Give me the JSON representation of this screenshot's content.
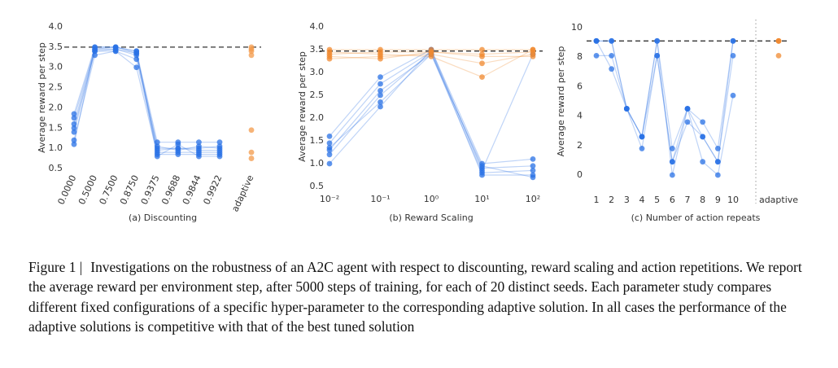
{
  "chart_data": [
    {
      "type": "line",
      "xlabel": "(a) Discounting",
      "ylabel": "Average reward per step",
      "categories": [
        "0.0000",
        "0.5000",
        "0.7500",
        "0.8750",
        "0.9375",
        "0.9688",
        "0.9844",
        "0.9922",
        "adaptive"
      ],
      "separate_last": true,
      "separator": false,
      "rotate_labels": true,
      "ylim": [
        0.5,
        4.0
      ],
      "yticks": [
        {
          "value": 0.5,
          "label": "0.5"
        },
        {
          "value": 1,
          "label": "1.0"
        },
        {
          "value": 1.5,
          "label": "1.5"
        },
        {
          "value": 2,
          "label": "2.0"
        },
        {
          "value": 2.5,
          "label": "2.5"
        },
        {
          "value": 3,
          "label": "3.0"
        },
        {
          "value": 3.5,
          "label": "3.5"
        },
        {
          "value": 4,
          "label": "4.0"
        }
      ],
      "reference_line": 3.5,
      "color": "#2a72e6",
      "adaptive_color": "#f39a4a",
      "series": [
        {
          "values": [
            1.85,
            3.5,
            3.5,
            3.4,
            1.15,
            1.15,
            1.15,
            1.15,
            3.5
          ]
        },
        {
          "values": [
            1.6,
            3.45,
            3.45,
            3.3,
            1.0,
            1.0,
            1.0,
            1.05,
            3.45
          ]
        },
        {
          "values": [
            1.4,
            3.4,
            3.4,
            3.2,
            0.9,
            0.9,
            0.9,
            0.9,
            3.4
          ]
        },
        {
          "values": [
            1.2,
            3.3,
            3.4,
            3.0,
            0.85,
            0.85,
            0.85,
            0.85,
            3.3
          ]
        },
        {
          "values": [
            1.1,
            3.5,
            3.5,
            3.35,
            1.05,
            0.95,
            1.05,
            1.0,
            1.45
          ]
        },
        {
          "values": [
            1.75,
            3.45,
            3.5,
            3.4,
            0.8,
            1.1,
            0.8,
            0.8,
            0.9
          ]
        },
        {
          "values": [
            1.5,
            3.4,
            3.45,
            3.35,
            0.95,
            1.0,
            0.95,
            0.95,
            0.75
          ]
        }
      ]
    },
    {
      "type": "line",
      "xlabel": "(b) Reward Scaling",
      "ylabel": "Average reward per step",
      "xscale": "log",
      "x": [
        0.01,
        0.1,
        1,
        10,
        100
      ],
      "xlim": [
        0.01,
        100
      ],
      "xticks": [
        {
          "value": 0.01,
          "label": "10⁻²"
        },
        {
          "value": 0.1,
          "label": "10⁻¹"
        },
        {
          "value": 1,
          "label": "10⁰"
        },
        {
          "value": 10,
          "label": "10¹"
        },
        {
          "value": 100,
          "label": "10²"
        }
      ],
      "ylim": [
        0.5,
        4.0
      ],
      "yticks": [
        {
          "value": 0.5,
          "label": "0.5"
        },
        {
          "value": 1,
          "label": "1.0"
        },
        {
          "value": 1.5,
          "label": "1.5"
        },
        {
          "value": 2,
          "label": "2.0"
        },
        {
          "value": 2.5,
          "label": "2.5"
        },
        {
          "value": 3,
          "label": "3.0"
        },
        {
          "value": 3.5,
          "label": "3.5"
        },
        {
          "value": 4,
          "label": "4.0"
        }
      ],
      "reference_line": 3.47,
      "series": [
        {
          "color": "#2a72e6",
          "values": [
            1.6,
            2.9,
            3.5,
            1.0,
            1.1
          ]
        },
        {
          "color": "#2a72e6",
          "values": [
            1.45,
            2.75,
            3.45,
            0.9,
            0.95
          ]
        },
        {
          "color": "#2a72e6",
          "values": [
            1.3,
            2.6,
            3.4,
            0.8,
            0.85
          ]
        },
        {
          "color": "#2a72e6",
          "values": [
            1.2,
            2.5,
            3.45,
            0.75,
            0.75
          ]
        },
        {
          "color": "#2a72e6",
          "values": [
            1.0,
            2.25,
            3.5,
            0.85,
            3.4
          ]
        },
        {
          "color": "#2a72e6",
          "values": [
            1.35,
            2.35,
            3.4,
            0.95,
            0.7
          ]
        },
        {
          "color": "#f08a30",
          "values": [
            3.5,
            3.5,
            3.5,
            3.5,
            3.5
          ]
        },
        {
          "color": "#f08a30",
          "values": [
            3.4,
            3.45,
            3.45,
            3.4,
            3.45
          ]
        },
        {
          "color": "#f08a30",
          "values": [
            3.3,
            3.35,
            3.4,
            3.2,
            3.4
          ]
        },
        {
          "color": "#f08a30",
          "values": [
            3.45,
            3.4,
            3.35,
            2.9,
            3.5
          ]
        },
        {
          "color": "#f08a30",
          "values": [
            3.35,
            3.3,
            3.45,
            3.35,
            3.35
          ]
        }
      ]
    },
    {
      "type": "line",
      "xlabel": "(c) Number of action repeats",
      "ylabel": "Average reward per step",
      "categories": [
        "1",
        "2",
        "3",
        "4",
        "5",
        "6",
        "7",
        "8",
        "9",
        "10",
        "adaptive"
      ],
      "separate_last": true,
      "separator": true,
      "rotate_labels": false,
      "ylim": [
        0,
        10
      ],
      "yticks": [
        0,
        2,
        4,
        6,
        8,
        10
      ],
      "reference_line": 9.1,
      "color": "#2a72e6",
      "adaptive_color": "#f08a30",
      "series": [
        {
          "values": [
            9.1,
            9.1,
            4.5,
            2.6,
            9.1,
            1.8,
            4.5,
            3.6,
            1.8,
            9.1,
            9.1
          ]
        },
        {
          "values": [
            8.1,
            8.1,
            4.5,
            1.8,
            8.1,
            0.9,
            3.6,
            2.6,
            0.9,
            8.1,
            8.1
          ]
        },
        {
          "values": [
            9.1,
            7.2,
            4.5,
            2.6,
            9.1,
            0.0,
            4.5,
            0.9,
            0.0,
            5.4,
            9.1
          ]
        },
        {
          "values": [
            9.1,
            9.1,
            4.5,
            2.6,
            8.1,
            0.9,
            4.5,
            2.6,
            0.9,
            9.1,
            9.1
          ]
        }
      ]
    }
  ],
  "caption": {
    "label": "Figure 1 |",
    "text": "Investigations on the robustness of an A2C agent with respect to discounting, reward scaling and action repetitions. We report the average reward per environment step, after 5000 steps of training, for each of 20 distinct seeds. Each parameter study compares different fixed configurations of a specific hyper-parameter to the corresponding adaptive solution. In all cases the performance of the adaptive solutions is competitive with that of the best tuned solution"
  }
}
